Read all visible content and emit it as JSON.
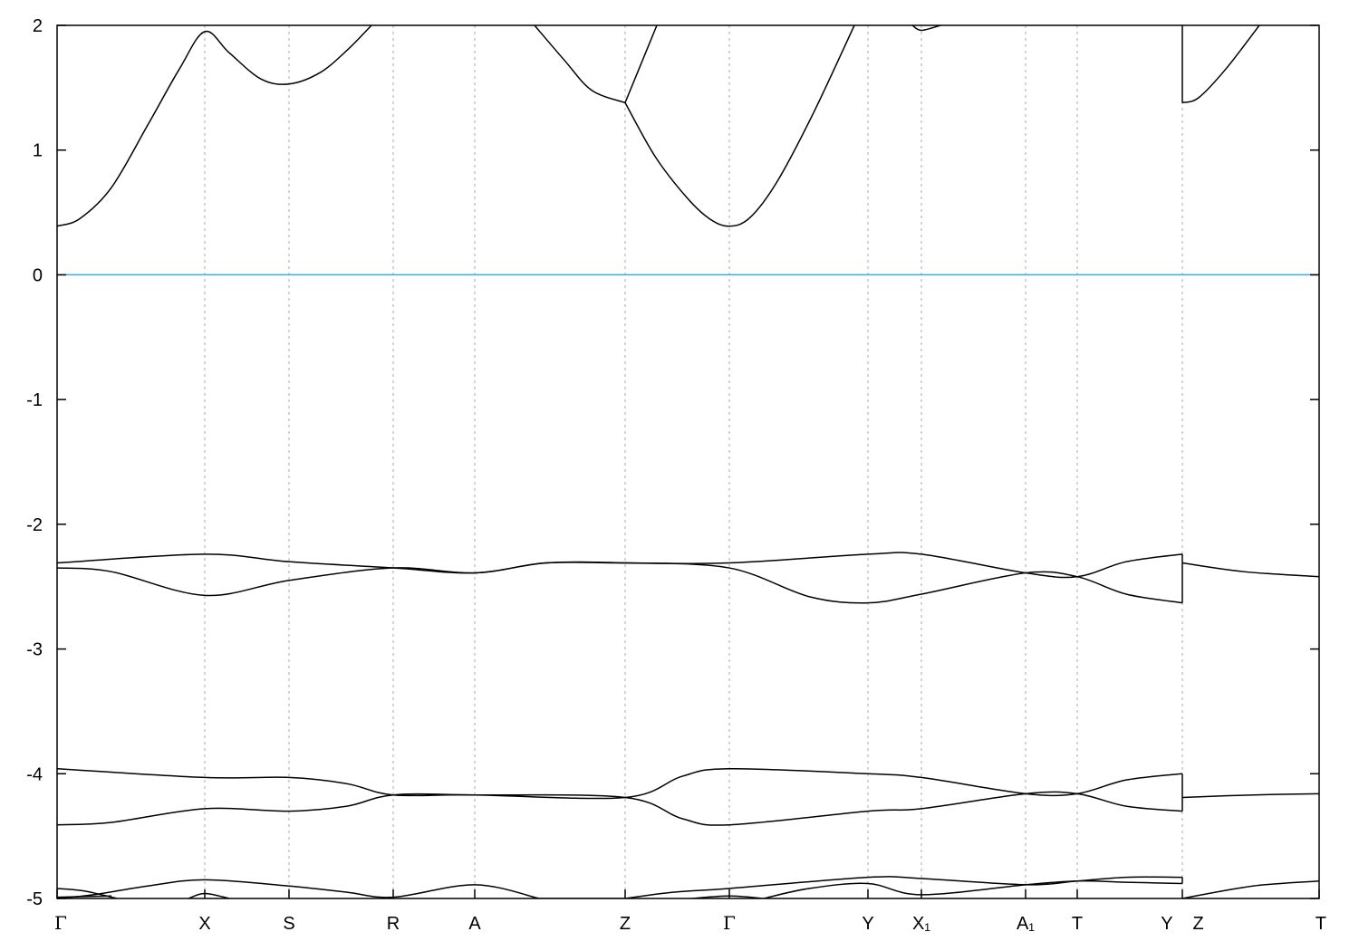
{
  "chart_data": {
    "type": "line",
    "title": "",
    "xlabel": "",
    "ylabel": "",
    "ylim": [
      -5,
      2
    ],
    "xlim": [
      0,
      13.93
    ],
    "yticks": [
      2,
      1,
      0,
      -1,
      -2,
      -3,
      -4,
      -5
    ],
    "xticks": [
      {
        "k": 0,
        "label": "Γ"
      },
      {
        "k": 1.63,
        "label": "X"
      },
      {
        "k": 2.56,
        "label": "S"
      },
      {
        "k": 3.71,
        "label": "R"
      },
      {
        "k": 4.61,
        "label": "A"
      },
      {
        "k": 6.27,
        "label": "Z"
      },
      {
        "k": 7.42,
        "label": "Γ"
      },
      {
        "k": 8.95,
        "label": "Y"
      },
      {
        "k": 9.54,
        "label": "X₁"
      },
      {
        "k": 10.69,
        "label": "A₁"
      },
      {
        "k": 11.26,
        "label": "T"
      },
      {
        "k": 12.42,
        "label": "Y Z"
      },
      {
        "k": 13.93,
        "label": "T"
      }
    ],
    "grid": "vertical dashed at high-symmetry points",
    "fermi_level": 0,
    "colors": {
      "bands": "#000000",
      "fermi": "#3fa9dd",
      "grid": "#aaaaaa"
    },
    "bands": [
      [
        [
          0,
          0.39
        ],
        [
          0.25,
          0.45
        ],
        [
          0.6,
          0.7
        ],
        [
          1.0,
          1.2
        ],
        [
          1.35,
          1.65
        ],
        [
          1.63,
          1.95
        ],
        [
          1.9,
          1.78
        ],
        [
          2.25,
          1.57
        ],
        [
          2.56,
          1.53
        ],
        [
          2.9,
          1.62
        ],
        [
          3.2,
          1.8
        ],
        [
          3.47,
          2.0
        ]
      ],
      [
        [
          5.27,
          2.0
        ],
        [
          5.6,
          1.72
        ],
        [
          5.9,
          1.48
        ],
        [
          6.27,
          1.38
        ]
      ],
      [
        [
          6.27,
          1.38
        ],
        [
          6.62,
          2.0
        ]
      ],
      [
        [
          6.27,
          1.38
        ],
        [
          6.6,
          0.95
        ],
        [
          6.95,
          0.62
        ],
        [
          7.2,
          0.45
        ],
        [
          7.42,
          0.39
        ],
        [
          7.65,
          0.46
        ],
        [
          7.95,
          0.75
        ],
        [
          8.35,
          1.3
        ],
        [
          8.8,
          2.0
        ]
      ],
      [
        [
          9.44,
          2.0
        ],
        [
          9.54,
          1.96
        ],
        [
          9.75,
          2.0
        ]
      ],
      [
        [
          12.42,
          2.0
        ],
        [
          12.42,
          1.38
        ]
      ],
      [
        [
          12.42,
          1.38
        ],
        [
          12.6,
          1.42
        ],
        [
          12.9,
          1.65
        ],
        [
          13.27,
          2.0
        ]
      ],
      [
        [
          0,
          -2.31
        ],
        [
          1.63,
          -2.24
        ],
        [
          2.56,
          -2.3
        ],
        [
          3.71,
          -2.35
        ],
        [
          4.61,
          -2.39
        ],
        [
          5.4,
          -2.31
        ],
        [
          6.27,
          -2.31
        ],
        [
          7.42,
          -2.31
        ],
        [
          8.95,
          -2.24
        ],
        [
          9.54,
          -2.24
        ],
        [
          10.69,
          -2.39
        ],
        [
          11.26,
          -2.42
        ],
        [
          11.8,
          -2.3
        ],
        [
          12.42,
          -2.24
        ]
      ],
      [
        [
          0,
          -2.35
        ],
        [
          0.6,
          -2.38
        ],
        [
          1.63,
          -2.57
        ],
        [
          2.56,
          -2.45
        ],
        [
          3.71,
          -2.35
        ],
        [
          4.61,
          -2.39
        ],
        [
          5.4,
          -2.31
        ],
        [
          6.27,
          -2.31
        ],
        [
          7.42,
          -2.35
        ],
        [
          8.3,
          -2.58
        ],
        [
          8.95,
          -2.63
        ],
        [
          9.54,
          -2.56
        ],
        [
          10.69,
          -2.39
        ],
        [
          11.26,
          -2.42
        ],
        [
          11.8,
          -2.56
        ],
        [
          12.42,
          -2.63
        ]
      ],
      [
        [
          12.42,
          -2.24
        ],
        [
          12.42,
          -2.63
        ]
      ],
      [
        [
          12.42,
          -2.31
        ],
        [
          13.1,
          -2.38
        ],
        [
          13.93,
          -2.42
        ]
      ],
      [
        [
          0,
          -3.96
        ],
        [
          1.63,
          -4.03
        ],
        [
          2.56,
          -4.03
        ],
        [
          3.2,
          -4.08
        ],
        [
          3.71,
          -4.17
        ],
        [
          4.61,
          -4.17
        ],
        [
          6.27,
          -4.19
        ],
        [
          6.9,
          -4.02
        ],
        [
          7.42,
          -3.96
        ],
        [
          8.95,
          -4.0
        ],
        [
          9.54,
          -4.03
        ],
        [
          10.69,
          -4.16
        ],
        [
          11.26,
          -4.16
        ],
        [
          11.8,
          -4.05
        ],
        [
          12.42,
          -4.0
        ]
      ],
      [
        [
          0,
          -4.41
        ],
        [
          0.6,
          -4.39
        ],
        [
          1.63,
          -4.28
        ],
        [
          2.56,
          -4.3
        ],
        [
          3.2,
          -4.26
        ],
        [
          3.71,
          -4.17
        ],
        [
          4.61,
          -4.17
        ],
        [
          6.27,
          -4.19
        ],
        [
          6.9,
          -4.36
        ],
        [
          7.42,
          -4.41
        ],
        [
          8.95,
          -4.3
        ],
        [
          9.54,
          -4.28
        ],
        [
          10.69,
          -4.16
        ],
        [
          11.26,
          -4.16
        ],
        [
          11.8,
          -4.26
        ],
        [
          12.42,
          -4.3
        ]
      ],
      [
        [
          12.42,
          -4.0
        ],
        [
          12.42,
          -4.3
        ]
      ],
      [
        [
          12.42,
          -4.19
        ],
        [
          13.2,
          -4.17
        ],
        [
          13.93,
          -4.16
        ]
      ],
      [
        [
          0,
          -4.92
        ],
        [
          0.3,
          -4.94
        ],
        [
          0.66,
          -5.0
        ]
      ],
      [
        [
          0,
          -5.0
        ],
        [
          0.4,
          -4.97
        ],
        [
          1.0,
          -4.9
        ],
        [
          1.63,
          -4.85
        ],
        [
          2.56,
          -4.9
        ],
        [
          3.2,
          -4.95
        ],
        [
          3.71,
          -4.99
        ],
        [
          4.61,
          -4.89
        ],
        [
          5.32,
          -5.0
        ]
      ],
      [
        [
          5.32,
          -5.0
        ],
        [
          6.27,
          -5.0
        ]
      ],
      [
        [
          6.27,
          -5.0
        ],
        [
          6.8,
          -4.95
        ],
        [
          7.42,
          -4.92
        ],
        [
          8.95,
          -4.83
        ],
        [
          9.54,
          -4.84
        ],
        [
          10.69,
          -4.89
        ],
        [
          11.26,
          -4.86
        ],
        [
          11.8,
          -4.83
        ],
        [
          12.42,
          -4.83
        ]
      ],
      [
        [
          7.8,
          -5.0
        ],
        [
          8.3,
          -4.92
        ],
        [
          8.95,
          -4.88
        ],
        [
          9.54,
          -4.97
        ],
        [
          10.69,
          -4.89
        ],
        [
          11.26,
          -4.86
        ],
        [
          11.8,
          -4.87
        ],
        [
          12.42,
          -4.88
        ]
      ],
      [
        [
          0,
          -4.99
        ],
        [
          0.6,
          -4.98
        ]
      ],
      [
        [
          1.45,
          -5.0
        ],
        [
          1.63,
          -4.96
        ],
        [
          1.9,
          -5.0
        ]
      ],
      [
        [
          7.0,
          -5.0
        ],
        [
          7.42,
          -4.98
        ],
        [
          7.8,
          -5.0
        ]
      ],
      [
        [
          12.42,
          -4.83
        ],
        [
          12.42,
          -4.88
        ]
      ],
      [
        [
          12.42,
          -5.0
        ],
        [
          13.2,
          -4.9
        ],
        [
          13.93,
          -4.86
        ]
      ]
    ]
  }
}
